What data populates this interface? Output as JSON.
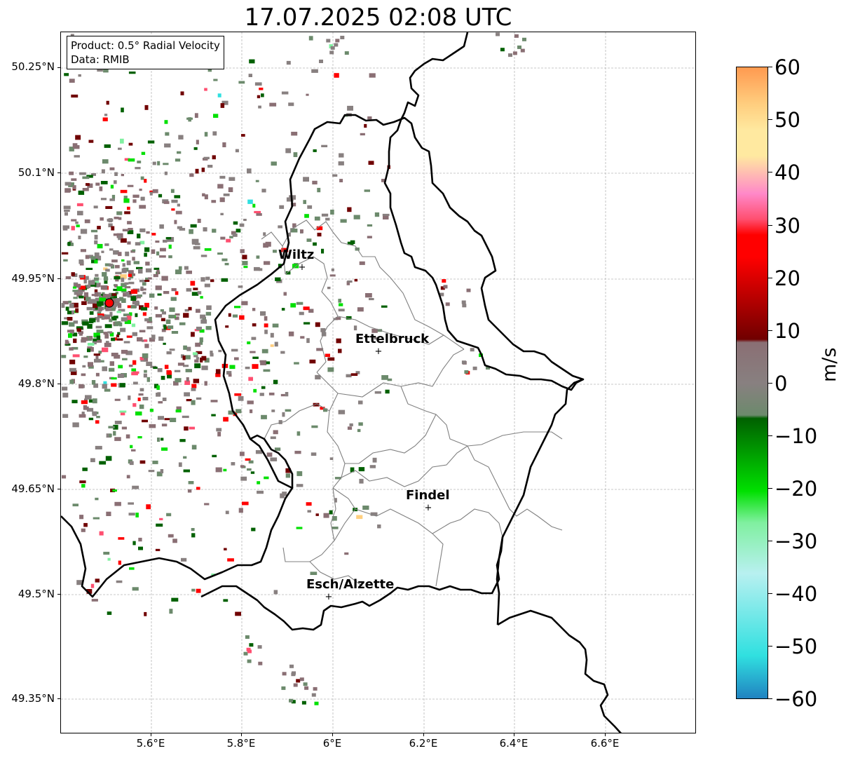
{
  "title": "17.07.2025 02:08 UTC",
  "info_box": {
    "product": "Product: 0.5° Radial Velocity",
    "data_source": "Data: RMIB"
  },
  "axes": {
    "lat_ticks": [
      "50.25°N",
      "50.1°N",
      "49.95°N",
      "49.8°N",
      "49.65°N",
      "49.5°N",
      "49.35°N"
    ],
    "lon_ticks": [
      "5.6°E",
      "5.8°E",
      "6°E",
      "6.2°E",
      "6.4°E",
      "6.6°E"
    ]
  },
  "cities": [
    {
      "name": "Wiltz"
    },
    {
      "name": "Ettelbruck"
    },
    {
      "name": "Findel"
    },
    {
      "name": "Esch/Alzette"
    }
  ],
  "radar_site": {
    "color": "#ff0000"
  },
  "colorbar": {
    "unit": "m/s",
    "tick_labels": [
      "60",
      "50",
      "40",
      "30",
      "20",
      "10",
      "0",
      "−10",
      "−20",
      "−30",
      "−40",
      "−50",
      "−60"
    ],
    "range": [
      -60,
      60
    ],
    "colors": {
      "max_orange": "#ff9a50",
      "light_orange": "#ffcf80",
      "pale_yellow": "#ffe9a0",
      "pink": "#ff88c8",
      "pink_red": "#ff4f70",
      "red": "#ff0000",
      "dark_red": "#700000",
      "near_zero_brown": "#8a6f74",
      "near_zero_grey": "#888080",
      "near_zero_green": "#6c8a6c",
      "dark_green": "#006000",
      "bright_green": "#00e000",
      "light_green": "#80f0a0",
      "pale_cyan": "#b8f0f0",
      "cyan": "#30e0e0",
      "blue": "#2080c0"
    }
  }
}
